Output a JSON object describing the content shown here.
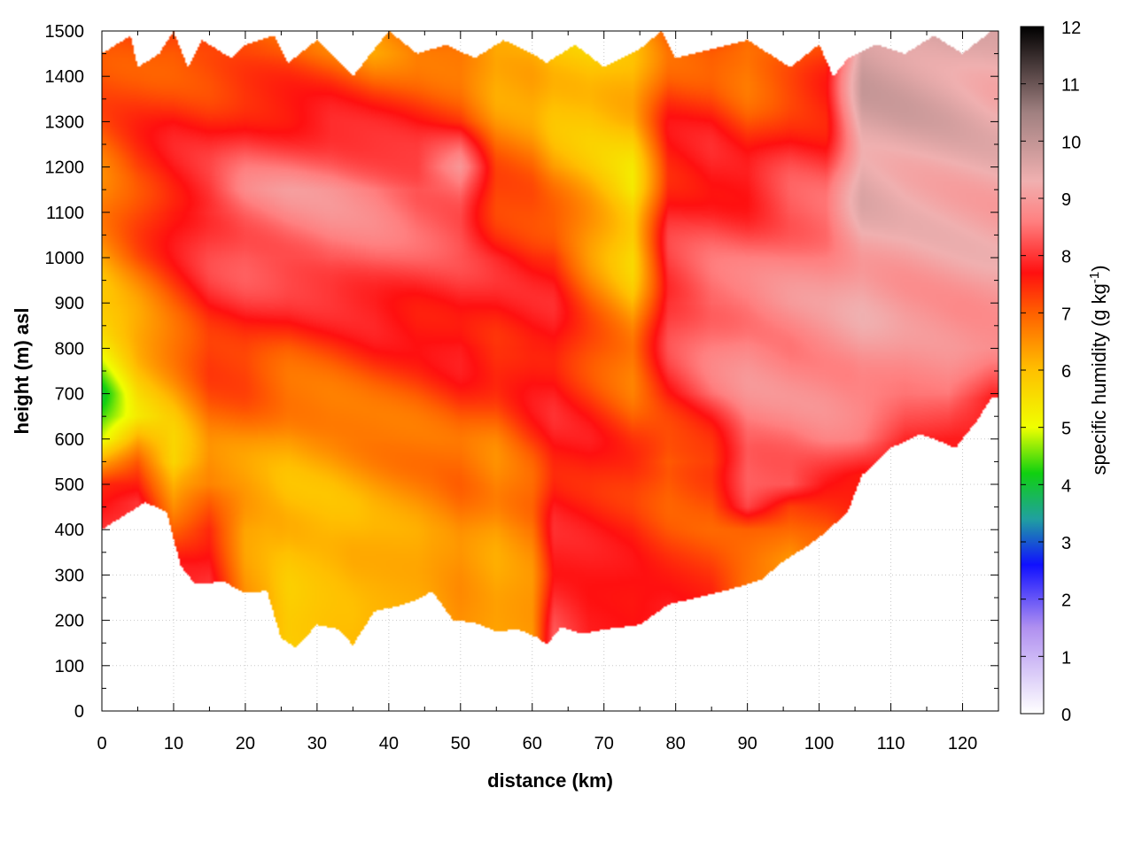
{
  "chart_data": {
    "type": "heatmap",
    "xlabel": "distance (km)",
    "ylabel": "height (m) asl",
    "xlim": [
      0,
      125
    ],
    "ylim": [
      0,
      1500
    ],
    "x_ticks": [
      0,
      10,
      20,
      30,
      40,
      50,
      60,
      70,
      80,
      90,
      100,
      110,
      120
    ],
    "y_ticks": [
      0,
      100,
      200,
      300,
      400,
      500,
      600,
      700,
      800,
      900,
      1000,
      1100,
      1200,
      1300,
      1400,
      1500
    ],
    "grid": true,
    "colorbar": {
      "label_main": "specific humidity (g kg",
      "label_sup": "-1",
      "label_end": ")",
      "range": [
        0,
        12
      ],
      "ticks": [
        0,
        1,
        2,
        3,
        4,
        5,
        6,
        7,
        8,
        9,
        10,
        11,
        12
      ],
      "stops": [
        {
          "v": 0,
          "color": "#ffffff"
        },
        {
          "v": 1.5,
          "color": "#b090f0"
        },
        {
          "v": 2.6,
          "color": "#1010ff"
        },
        {
          "v": 3.4,
          "color": "#20a0a0"
        },
        {
          "v": 4.2,
          "color": "#10d010"
        },
        {
          "v": 5.0,
          "color": "#f0ff00"
        },
        {
          "v": 6.0,
          "color": "#ffc000"
        },
        {
          "v": 7.0,
          "color": "#ff6000"
        },
        {
          "v": 7.7,
          "color": "#ff1010"
        },
        {
          "v": 8.6,
          "color": "#ff8080"
        },
        {
          "v": 9.3,
          "color": "#f0b0b0"
        },
        {
          "v": 10.5,
          "color": "#a08080"
        },
        {
          "v": 12,
          "color": "#000000"
        }
      ]
    },
    "terrain_height": [
      [
        0,
        400
      ],
      [
        3,
        430
      ],
      [
        6,
        460
      ],
      [
        9,
        440
      ],
      [
        11,
        320
      ],
      [
        13,
        280
      ],
      [
        17,
        285
      ],
      [
        20,
        260
      ],
      [
        23,
        265
      ],
      [
        25,
        160
      ],
      [
        27,
        140
      ],
      [
        30,
        190
      ],
      [
        33,
        180
      ],
      [
        35,
        145
      ],
      [
        38,
        220
      ],
      [
        41,
        230
      ],
      [
        44,
        245
      ],
      [
        46,
        265
      ],
      [
        49,
        200
      ],
      [
        52,
        195
      ],
      [
        55,
        175
      ],
      [
        58,
        180
      ],
      [
        61,
        160
      ],
      [
        62,
        145
      ],
      [
        64,
        185
      ],
      [
        67,
        170
      ],
      [
        70,
        180
      ],
      [
        75,
        190
      ],
      [
        79,
        235
      ],
      [
        83,
        250
      ],
      [
        88,
        270
      ],
      [
        92,
        290
      ],
      [
        95,
        330
      ],
      [
        98,
        360
      ],
      [
        101,
        395
      ],
      [
        104,
        440
      ],
      [
        106,
        520
      ],
      [
        110,
        580
      ],
      [
        114,
        610
      ],
      [
        116,
        600
      ],
      [
        119,
        580
      ],
      [
        122,
        640
      ],
      [
        124,
        690
      ]
    ],
    "top_height": [
      [
        0,
        1450
      ],
      [
        4,
        1490
      ],
      [
        5,
        1420
      ],
      [
        8,
        1450
      ],
      [
        10,
        1500
      ],
      [
        12,
        1420
      ],
      [
        14,
        1480
      ],
      [
        18,
        1440
      ],
      [
        20,
        1470
      ],
      [
        24,
        1490
      ],
      [
        26,
        1430
      ],
      [
        30,
        1480
      ],
      [
        35,
        1400
      ],
      [
        40,
        1500
      ],
      [
        44,
        1450
      ],
      [
        48,
        1470
      ],
      [
        52,
        1440
      ],
      [
        56,
        1480
      ],
      [
        60,
        1450
      ],
      [
        62,
        1430
      ],
      [
        66,
        1470
      ],
      [
        70,
        1420
      ],
      [
        75,
        1460
      ],
      [
        78,
        1500
      ],
      [
        80,
        1440
      ],
      [
        85,
        1460
      ],
      [
        90,
        1480
      ],
      [
        93,
        1450
      ],
      [
        96,
        1420
      ],
      [
        100,
        1470
      ],
      [
        102,
        1400
      ],
      [
        104,
        1440
      ],
      [
        108,
        1470
      ],
      [
        112,
        1450
      ],
      [
        116,
        1490
      ],
      [
        120,
        1450
      ],
      [
        124,
        1500
      ]
    ],
    "humidity_columns": [
      {
        "x": 0,
        "v": [
          [
            400,
            8.0
          ],
          [
            500,
            7.5
          ],
          [
            600,
            4.8
          ],
          [
            700,
            4.2
          ],
          [
            800,
            5.0
          ],
          [
            900,
            6.0
          ],
          [
            1100,
            6.6
          ],
          [
            1300,
            7.0
          ],
          [
            1450,
            7.3
          ]
        ]
      },
      {
        "x": 5,
        "v": [
          [
            460,
            8.0
          ],
          [
            550,
            7.0
          ],
          [
            650,
            5.5
          ],
          [
            800,
            6.0
          ],
          [
            1000,
            7.0
          ],
          [
            1200,
            7.4
          ],
          [
            1450,
            7.2
          ]
        ]
      },
      {
        "x": 10,
        "v": [
          [
            320,
            7.8
          ],
          [
            450,
            6.5
          ],
          [
            550,
            5.6
          ],
          [
            700,
            6.2
          ],
          [
            900,
            7.2
          ],
          [
            1100,
            7.8
          ],
          [
            1300,
            7.6
          ],
          [
            1450,
            7.0
          ]
        ]
      },
      {
        "x": 15,
        "v": [
          [
            280,
            8.0
          ],
          [
            400,
            7.5
          ],
          [
            500,
            6.5
          ],
          [
            700,
            7.0
          ],
          [
            900,
            7.8
          ],
          [
            1100,
            8.2
          ],
          [
            1300,
            7.6
          ],
          [
            1450,
            7.0
          ]
        ]
      },
      {
        "x": 20,
        "v": [
          [
            260,
            6.5
          ],
          [
            400,
            6.2
          ],
          [
            600,
            6.6
          ],
          [
            800,
            7.5
          ],
          [
            1000,
            8.3
          ],
          [
            1150,
            8.6
          ],
          [
            1300,
            7.8
          ],
          [
            1450,
            7.0
          ]
        ]
      },
      {
        "x": 26,
        "v": [
          [
            150,
            5.8
          ],
          [
            350,
            5.9
          ],
          [
            600,
            6.3
          ],
          [
            800,
            7.2
          ],
          [
            1000,
            8.4
          ],
          [
            1150,
            8.8
          ],
          [
            1300,
            7.8
          ],
          [
            1450,
            7.0
          ]
        ]
      },
      {
        "x": 32,
        "v": [
          [
            185,
            6.0
          ],
          [
            400,
            6.0
          ],
          [
            600,
            6.4
          ],
          [
            800,
            7.3
          ],
          [
            1000,
            8.5
          ],
          [
            1150,
            8.8
          ],
          [
            1300,
            7.9
          ],
          [
            1450,
            6.8
          ]
        ]
      },
      {
        "x": 38,
        "v": [
          [
            210,
            6.1
          ],
          [
            400,
            6.2
          ],
          [
            600,
            6.6
          ],
          [
            800,
            7.5
          ],
          [
            1000,
            8.4
          ],
          [
            1150,
            8.7
          ],
          [
            1300,
            7.7
          ],
          [
            1450,
            6.5
          ]
        ]
      },
      {
        "x": 44,
        "v": [
          [
            240,
            6.2
          ],
          [
            400,
            6.3
          ],
          [
            600,
            6.8
          ],
          [
            800,
            7.5
          ],
          [
            1000,
            8.2
          ],
          [
            1150,
            8.5
          ],
          [
            1300,
            7.5
          ],
          [
            1450,
            6.8
          ]
        ]
      },
      {
        "x": 50,
        "v": [
          [
            200,
            6.5
          ],
          [
            400,
            6.6
          ],
          [
            600,
            7.0
          ],
          [
            800,
            7.8
          ],
          [
            1000,
            8.0
          ],
          [
            1200,
            8.8
          ],
          [
            1300,
            7.4
          ],
          [
            1450,
            6.6
          ]
        ]
      },
      {
        "x": 55,
        "v": [
          [
            180,
            6.3
          ],
          [
            400,
            6.3
          ],
          [
            600,
            6.8
          ],
          [
            800,
            7.6
          ],
          [
            1000,
            7.8
          ],
          [
            1200,
            7.0
          ],
          [
            1450,
            6.0
          ]
        ]
      },
      {
        "x": 60,
        "v": [
          [
            165,
            6.4
          ],
          [
            400,
            6.6
          ],
          [
            600,
            7.4
          ],
          [
            800,
            7.8
          ],
          [
            1000,
            7.6
          ],
          [
            1200,
            6.8
          ],
          [
            1450,
            6.0
          ]
        ]
      },
      {
        "x": 63,
        "v": [
          [
            150,
            8.4
          ],
          [
            300,
            7.8
          ],
          [
            600,
            7.7
          ],
          [
            800,
            7.8
          ],
          [
            1000,
            7.6
          ],
          [
            1200,
            6.3
          ],
          [
            1450,
            5.8
          ]
        ]
      },
      {
        "x": 68,
        "v": [
          [
            175,
            7.8
          ],
          [
            400,
            7.7
          ],
          [
            600,
            7.6
          ],
          [
            800,
            7.2
          ],
          [
            1000,
            6.6
          ],
          [
            1200,
            6.0
          ],
          [
            1450,
            5.8
          ]
        ]
      },
      {
        "x": 74,
        "v": [
          [
            185,
            7.7
          ],
          [
            400,
            7.6
          ],
          [
            600,
            7.2
          ],
          [
            800,
            6.6
          ],
          [
            1000,
            5.7
          ],
          [
            1150,
            5.4
          ],
          [
            1300,
            6.0
          ],
          [
            1450,
            6.2
          ]
        ]
      },
      {
        "x": 79,
        "v": [
          [
            235,
            7.8
          ],
          [
            400,
            7.2
          ],
          [
            550,
            6.8
          ],
          [
            700,
            7.8
          ],
          [
            900,
            8.2
          ],
          [
            1100,
            7.8
          ],
          [
            1300,
            7.5
          ],
          [
            1450,
            7.0
          ]
        ]
      },
      {
        "x": 85,
        "v": [
          [
            250,
            7.6
          ],
          [
            400,
            7.0
          ],
          [
            550,
            7.2
          ],
          [
            700,
            8.4
          ],
          [
            900,
            8.6
          ],
          [
            1100,
            8.0
          ],
          [
            1300,
            7.6
          ],
          [
            1450,
            7.0
          ]
        ]
      },
      {
        "x": 90,
        "v": [
          [
            275,
            6.8
          ],
          [
            400,
            7.0
          ],
          [
            450,
            8.0
          ],
          [
            600,
            8.6
          ],
          [
            800,
            8.8
          ],
          [
            1000,
            8.4
          ],
          [
            1200,
            7.6
          ],
          [
            1450,
            6.6
          ]
        ]
      },
      {
        "x": 96,
        "v": [
          [
            330,
            6.4
          ],
          [
            450,
            7.2
          ],
          [
            500,
            8.3
          ],
          [
            700,
            8.7
          ],
          [
            900,
            8.8
          ],
          [
            1100,
            8.4
          ],
          [
            1300,
            7.6
          ],
          [
            1450,
            6.8
          ]
        ]
      },
      {
        "x": 101,
        "v": [
          [
            395,
            7.0
          ],
          [
            500,
            7.8
          ],
          [
            600,
            8.6
          ],
          [
            800,
            8.9
          ],
          [
            1000,
            8.8
          ],
          [
            1200,
            8.0
          ],
          [
            1450,
            7.2
          ]
        ]
      },
      {
        "x": 106,
        "v": [
          [
            520,
            7.6
          ],
          [
            600,
            8.5
          ],
          [
            800,
            9.0
          ],
          [
            1000,
            9.2
          ],
          [
            1200,
            9.5
          ],
          [
            1450,
            9.8
          ]
        ]
      },
      {
        "x": 112,
        "v": [
          [
            590,
            7.8
          ],
          [
            700,
            8.6
          ],
          [
            900,
            9.0
          ],
          [
            1100,
            9.2
          ],
          [
            1300,
            9.6
          ],
          [
            1450,
            9.7
          ]
        ]
      },
      {
        "x": 118,
        "v": [
          [
            600,
            7.8
          ],
          [
            700,
            8.6
          ],
          [
            900,
            9.0
          ],
          [
            1100,
            9.2
          ],
          [
            1300,
            9.5
          ],
          [
            1450,
            9.6
          ]
        ]
      },
      {
        "x": 124,
        "v": [
          [
            690,
            7.8
          ],
          [
            800,
            8.8
          ],
          [
            1000,
            9.1
          ],
          [
            1200,
            9.3
          ],
          [
            1450,
            9.4
          ]
        ]
      }
    ]
  }
}
